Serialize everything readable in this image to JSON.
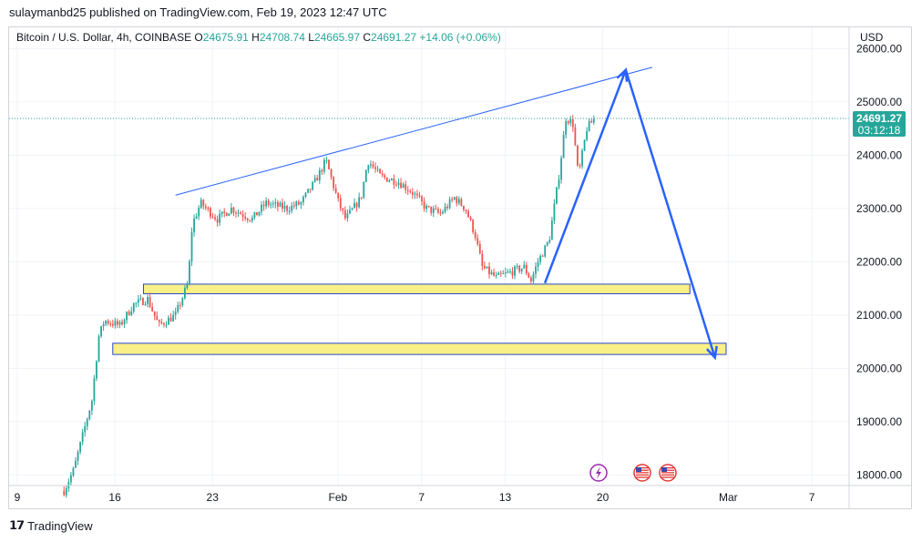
{
  "publisher_note": "sulaymanbd25 published on TradingView.com, Feb 19, 2023 12:47 UTC",
  "footer_brand": "TradingView",
  "legend": {
    "symbol": "Bitcoin / U.S. Dollar, 4h, COINBASE",
    "o_label": "O",
    "o_value": "24675.91",
    "h_label": "H",
    "h_value": "24708.74",
    "l_label": "L",
    "l_value": "24665.97",
    "c_label": "C",
    "c_value": "24691.27",
    "change": "+14.06 (+0.06%)"
  },
  "colors": {
    "up": "#26a69a",
    "down": "#ef5350",
    "accent": "#2962ff",
    "zone_fill": "#f9f087",
    "zone_border": "#2848c8"
  },
  "icons": [
    "lightning-event-icon",
    "us-flag-event-icon",
    "us-flag-event-icon"
  ],
  "chart_data": {
    "type": "candlestick",
    "currency_label": "USD",
    "ylim": [
      17800,
      26400
    ],
    "y_ticks": [
      "26000.00",
      "25000.00",
      "24000.00",
      "23000.00",
      "22000.00",
      "21000.00",
      "20000.00",
      "19000.00",
      "18000.00"
    ],
    "x_ticks": [
      "9",
      "16",
      "23",
      "Feb",
      "7",
      "13",
      "20",
      "Mar",
      "7"
    ],
    "last_price_label": "24691.27",
    "countdown_label": "03:12:18",
    "anchors": [
      {
        "day": 11.5,
        "price": 17700
      },
      {
        "day": 12.2,
        "price": 18100
      },
      {
        "day": 12.9,
        "price": 18800
      },
      {
        "day": 13.5,
        "price": 19400
      },
      {
        "day": 14.0,
        "price": 20600
      },
      {
        "day": 14.4,
        "price": 20900
      },
      {
        "day": 15.5,
        "price": 20800
      },
      {
        "day": 16.5,
        "price": 21200
      },
      {
        "day": 17.5,
        "price": 21300
      },
      {
        "day": 18.3,
        "price": 20800
      },
      {
        "day": 19.5,
        "price": 21000
      },
      {
        "day": 20.4,
        "price": 21600
      },
      {
        "day": 20.7,
        "price": 22700
      },
      {
        "day": 21.3,
        "price": 23100
      },
      {
        "day": 22.5,
        "price": 22800
      },
      {
        "day": 23.5,
        "price": 23000
      },
      {
        "day": 25.0,
        "price": 22800
      },
      {
        "day": 26.0,
        "price": 23100
      },
      {
        "day": 27.5,
        "price": 23000
      },
      {
        "day": 28.5,
        "price": 23100
      },
      {
        "day": 29.5,
        "price": 23500
      },
      {
        "day": 30.3,
        "price": 23900
      },
      {
        "day": 31.2,
        "price": 23100
      },
      {
        "day": 31.7,
        "price": 22800
      },
      {
        "day": 32.8,
        "price": 23200
      },
      {
        "day": 33.3,
        "price": 23900
      },
      {
        "day": 34.2,
        "price": 23600
      },
      {
        "day": 35.5,
        "price": 23500
      },
      {
        "day": 36.5,
        "price": 23300
      },
      {
        "day": 37.5,
        "price": 23000
      },
      {
        "day": 38.5,
        "price": 22900
      },
      {
        "day": 39.5,
        "price": 23200
      },
      {
        "day": 40.3,
        "price": 23000
      },
      {
        "day": 41.0,
        "price": 22500
      },
      {
        "day": 41.5,
        "price": 21900
      },
      {
        "day": 42.5,
        "price": 21700
      },
      {
        "day": 43.5,
        "price": 21800
      },
      {
        "day": 44.5,
        "price": 21900
      },
      {
        "day": 45.0,
        "price": 21650
      },
      {
        "day": 45.5,
        "price": 22000
      },
      {
        "day": 46.3,
        "price": 22400
      },
      {
        "day": 47.0,
        "price": 23600
      },
      {
        "day": 47.5,
        "price": 24700
      },
      {
        "day": 48.0,
        "price": 24600
      },
      {
        "day": 48.4,
        "price": 23600
      },
      {
        "day": 49.0,
        "price": 24500
      },
      {
        "day": 49.6,
        "price": 24700
      }
    ],
    "resistance_line": {
      "from": {
        "day": 19.5,
        "price": 23250
      },
      "to": {
        "day": 53.7,
        "price": 25650
      }
    },
    "support_zones": [
      {
        "from_day": 17.2,
        "to_day": 56.4,
        "top": 21580,
        "bottom": 21400
      },
      {
        "from_day": 15.0,
        "to_day": 59.0,
        "top": 20470,
        "bottom": 20260
      }
    ],
    "projection_path": [
      {
        "day": 46.0,
        "price": 21600
      },
      {
        "day": 51.8,
        "price": 25600
      },
      {
        "day": 58.2,
        "price": 20200
      }
    ],
    "current_price": 24691.27
  }
}
